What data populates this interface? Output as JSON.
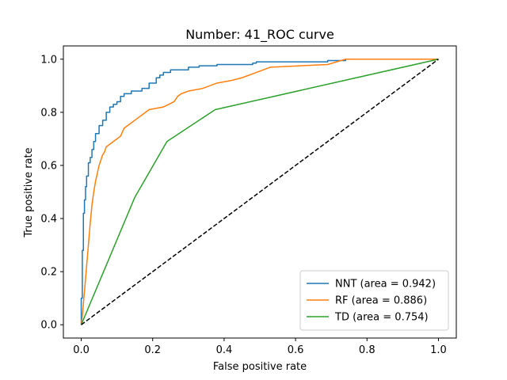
{
  "chart_data": {
    "type": "line",
    "title": "Number: 41_ROC curve",
    "xlabel": "False positive rate",
    "ylabel": "True positive rate",
    "xlim": [
      -0.05,
      1.05
    ],
    "ylim": [
      -0.05,
      1.05
    ],
    "xticks": [
      0.0,
      0.2,
      0.4,
      0.6,
      0.8,
      1.0
    ],
    "yticks": [
      0.0,
      0.2,
      0.4,
      0.6,
      0.8,
      1.0
    ],
    "xtick_labels": [
      "0.0",
      "0.2",
      "0.4",
      "0.6",
      "0.8",
      "1.0"
    ],
    "ytick_labels": [
      "0.0",
      "0.2",
      "0.4",
      "0.6",
      "0.8",
      "1.0"
    ],
    "grid": false,
    "legend_position": "lower-right",
    "series": [
      {
        "name": "NNT (area = 0.942)",
        "color": "#1f77b4",
        "style": "solid",
        "x": [
          0,
          0,
          0.003,
          0.003,
          0.006,
          0.006,
          0.009,
          0.009,
          0.012,
          0.012,
          0.015,
          0.015,
          0.02,
          0.02,
          0.025,
          0.025,
          0.03,
          0.03,
          0.035,
          0.035,
          0.04,
          0.04,
          0.05,
          0.05,
          0.06,
          0.06,
          0.07,
          0.07,
          0.08,
          0.08,
          0.09,
          0.09,
          0.1,
          0.1,
          0.11,
          0.11,
          0.12,
          0.12,
          0.14,
          0.14,
          0.17,
          0.17,
          0.19,
          0.19,
          0.21,
          0.21,
          0.22,
          0.22,
          0.23,
          0.23,
          0.25,
          0.25,
          0.3,
          0.3,
          0.33,
          0.33,
          0.38,
          0.38,
          0.48,
          0.48,
          0.49,
          0.49,
          0.69,
          0.69,
          0.74,
          0.74,
          1.0
        ],
        "y": [
          0,
          0.1,
          0.1,
          0.28,
          0.28,
          0.42,
          0.42,
          0.47,
          0.47,
          0.52,
          0.52,
          0.56,
          0.56,
          0.61,
          0.61,
          0.63,
          0.63,
          0.66,
          0.66,
          0.69,
          0.69,
          0.72,
          0.72,
          0.75,
          0.75,
          0.77,
          0.77,
          0.8,
          0.8,
          0.82,
          0.82,
          0.83,
          0.83,
          0.84,
          0.84,
          0.86,
          0.86,
          0.87,
          0.87,
          0.88,
          0.88,
          0.89,
          0.89,
          0.91,
          0.91,
          0.93,
          0.93,
          0.94,
          0.94,
          0.95,
          0.95,
          0.96,
          0.96,
          0.97,
          0.97,
          0.975,
          0.975,
          0.98,
          0.98,
          0.985,
          0.985,
          0.99,
          0.99,
          0.995,
          0.995,
          1.0,
          1.0
        ]
      },
      {
        "name": "RF (area = 0.886)",
        "color": "#ff7f0e",
        "style": "solid",
        "x": [
          0,
          0.003,
          0.003,
          0.006,
          0.006,
          0.01,
          0.01,
          0.015,
          0.015,
          0.02,
          0.02,
          0.025,
          0.025,
          0.03,
          0.03,
          0.035,
          0.035,
          0.04,
          0.04,
          0.045,
          0.045,
          0.05,
          0.05,
          0.055,
          0.055,
          0.06,
          0.06,
          0.065,
          0.065,
          0.07,
          0.07,
          0.08,
          0.08,
          0.09,
          0.09,
          0.11,
          0.11,
          0.12,
          0.12,
          0.13,
          0.13,
          0.14,
          0.14,
          0.15,
          0.15,
          0.16,
          0.16,
          0.17,
          0.17,
          0.18,
          0.18,
          0.19,
          0.19,
          0.23,
          0.23,
          0.26,
          0.26,
          0.27,
          0.27,
          0.28,
          0.28,
          0.3,
          0.3,
          0.34,
          0.34,
          0.36,
          0.36,
          0.38,
          0.38,
          0.42,
          0.42,
          0.45,
          0.45,
          0.49,
          0.49,
          0.53,
          0.53,
          0.69,
          0.69,
          0.74,
          0.74,
          1.0
        ],
        "y": [
          0,
          0.03,
          0.03,
          0.08,
          0.08,
          0.14,
          0.14,
          0.22,
          0.22,
          0.3,
          0.3,
          0.38,
          0.38,
          0.45,
          0.45,
          0.5,
          0.5,
          0.54,
          0.54,
          0.57,
          0.57,
          0.6,
          0.6,
          0.62,
          0.62,
          0.64,
          0.64,
          0.65,
          0.65,
          0.67,
          0.67,
          0.68,
          0.68,
          0.69,
          0.69,
          0.71,
          0.71,
          0.74,
          0.74,
          0.75,
          0.75,
          0.76,
          0.76,
          0.77,
          0.77,
          0.78,
          0.78,
          0.79,
          0.79,
          0.8,
          0.8,
          0.81,
          0.81,
          0.82,
          0.82,
          0.84,
          0.84,
          0.86,
          0.86,
          0.87,
          0.87,
          0.88,
          0.88,
          0.89,
          0.89,
          0.9,
          0.9,
          0.91,
          0.91,
          0.92,
          0.92,
          0.93,
          0.93,
          0.95,
          0.95,
          0.97,
          0.97,
          0.98,
          0.98,
          1.0,
          1.0,
          1.0
        ]
      },
      {
        "name": "TD (area = 0.754)",
        "color": "#2ca02c",
        "style": "solid",
        "x": [
          0,
          0.15,
          0.24,
          0.375,
          1.0
        ],
        "y": [
          0,
          0.48,
          0.69,
          0.81,
          1.0
        ]
      },
      {
        "name": "",
        "color": "#000000",
        "style": "dashed",
        "x": [
          0,
          1
        ],
        "y": [
          0,
          1
        ]
      }
    ]
  }
}
